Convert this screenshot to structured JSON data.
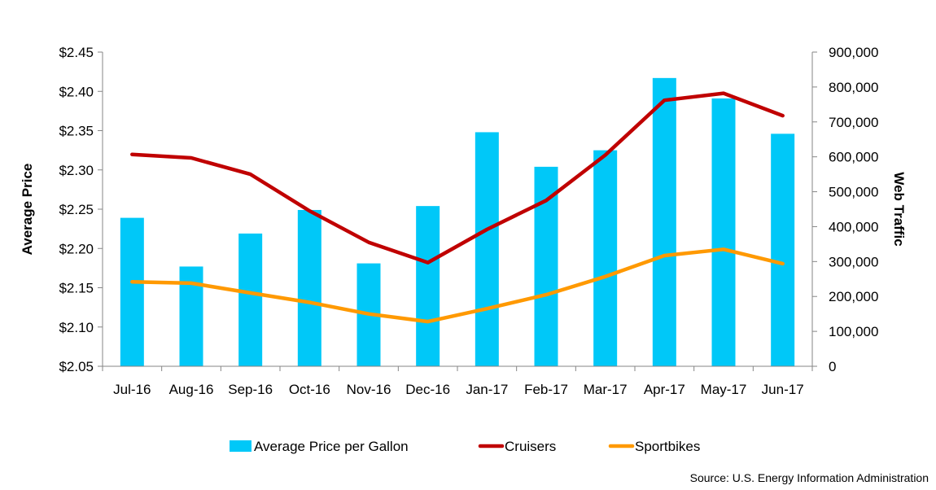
{
  "chart_data": {
    "type": "bar+line",
    "categories": [
      "Jul-16",
      "Aug-16",
      "Sep-16",
      "Oct-16",
      "Nov-16",
      "Dec-16",
      "Jan-17",
      "Feb-17",
      "Mar-17",
      "Apr-17",
      "May-17",
      "Jun-17"
    ],
    "y_left": {
      "label": "Average Price",
      "range": [
        2.05,
        2.45
      ],
      "ticks": [
        "$2.05",
        "$2.10",
        "$2.15",
        "$2.20",
        "$2.25",
        "$2.30",
        "$2.35",
        "$2.40",
        "$2.45"
      ]
    },
    "y_right": {
      "label": "Web Traffic",
      "range": [
        0,
        900000
      ],
      "ticks": [
        "0",
        "100,000",
        "200,000",
        "300,000",
        "400,000",
        "500,000",
        "600,000",
        "700,000",
        "800,000",
        "900,000"
      ]
    },
    "series": [
      {
        "name": "Average Price per Gallon",
        "kind": "bar",
        "axis": "left",
        "color": "#00c8f8",
        "values": [
          2.239,
          2.177,
          2.219,
          2.249,
          2.181,
          2.254,
          2.348,
          2.304,
          2.325,
          2.417,
          2.391,
          2.346
        ]
      },
      {
        "name": "Cruisers",
        "kind": "line",
        "axis": "right",
        "color": "#c00000",
        "values": [
          607000,
          597000,
          550000,
          445000,
          355000,
          297000,
          392000,
          475000,
          605000,
          762000,
          782000,
          718000
        ]
      },
      {
        "name": "Sportbikes",
        "kind": "line",
        "axis": "right",
        "color": "#ff9900",
        "values": [
          242000,
          238000,
          210000,
          183000,
          150000,
          128000,
          165000,
          205000,
          257000,
          317000,
          335000,
          294000
        ]
      }
    ],
    "legend_position": "bottom",
    "grid": false
  },
  "source_text": "Source:  U.S. Energy Information Administration"
}
